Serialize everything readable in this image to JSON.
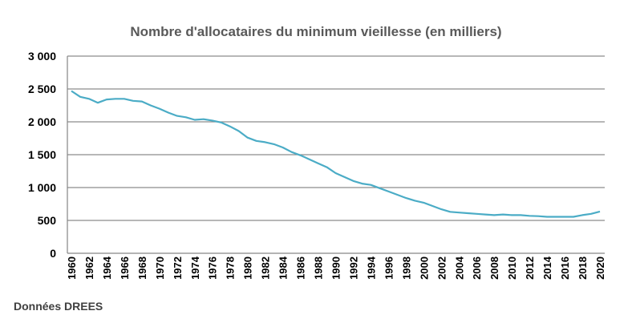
{
  "chart_data": {
    "type": "line",
    "title": "Nombre d'allocataires du minimum vieillesse (en milliers)",
    "xlabel": "",
    "ylabel": "",
    "ylim": [
      0,
      3000
    ],
    "xlim": [
      1960,
      2020
    ],
    "yticks": [
      0,
      500,
      1000,
      1500,
      2000,
      2500,
      3000
    ],
    "ytick_labels": [
      "0",
      "500",
      "1 000",
      "1 500",
      "2 000",
      "2 500",
      "3 000"
    ],
    "xtick_labels": [
      "1960",
      "1962",
      "1964",
      "1966",
      "1968",
      "1970",
      "1972",
      "1974",
      "1976",
      "1978",
      "1980",
      "1982",
      "1984",
      "1986",
      "1988",
      "1990",
      "1992",
      "1994",
      "1996",
      "1998",
      "2000",
      "2002",
      "2004",
      "2006",
      "2008",
      "2010",
      "2012",
      "2014",
      "2016",
      "2018",
      "2020"
    ],
    "grid": "horizontal",
    "legend": "none",
    "line_color": "#4bacc6",
    "series": [
      {
        "x": [
          1960,
          1961,
          1962,
          1963,
          1964,
          1965,
          1966,
          1967,
          1968,
          1969,
          1970,
          1971,
          1972,
          1973,
          1974,
          1975,
          1976,
          1977,
          1978,
          1979,
          1980,
          1981,
          1982,
          1983,
          1984,
          1985,
          1986,
          1987,
          1988,
          1989,
          1990,
          1991,
          1992,
          1993,
          1994,
          1995,
          1996,
          1997,
          1998,
          1999,
          2000,
          2001,
          2002,
          2003,
          2004,
          2005,
          2006,
          2007,
          2008,
          2009,
          2010,
          2011,
          2012,
          2013,
          2014,
          2015,
          2016,
          2017,
          2018,
          2019,
          2020
        ],
        "values": [
          2470,
          2380,
          2350,
          2290,
          2340,
          2350,
          2350,
          2320,
          2310,
          2250,
          2200,
          2140,
          2090,
          2070,
          2030,
          2040,
          2020,
          1990,
          1930,
          1860,
          1760,
          1710,
          1690,
          1660,
          1610,
          1540,
          1490,
          1430,
          1370,
          1310,
          1220,
          1160,
          1100,
          1060,
          1040,
          990,
          940,
          890,
          840,
          800,
          770,
          720,
          670,
          630,
          620,
          610,
          600,
          590,
          580,
          590,
          580,
          580,
          570,
          565,
          555,
          555,
          555,
          555,
          580,
          600,
          635
        ]
      }
    ]
  },
  "source": "Données DREES"
}
